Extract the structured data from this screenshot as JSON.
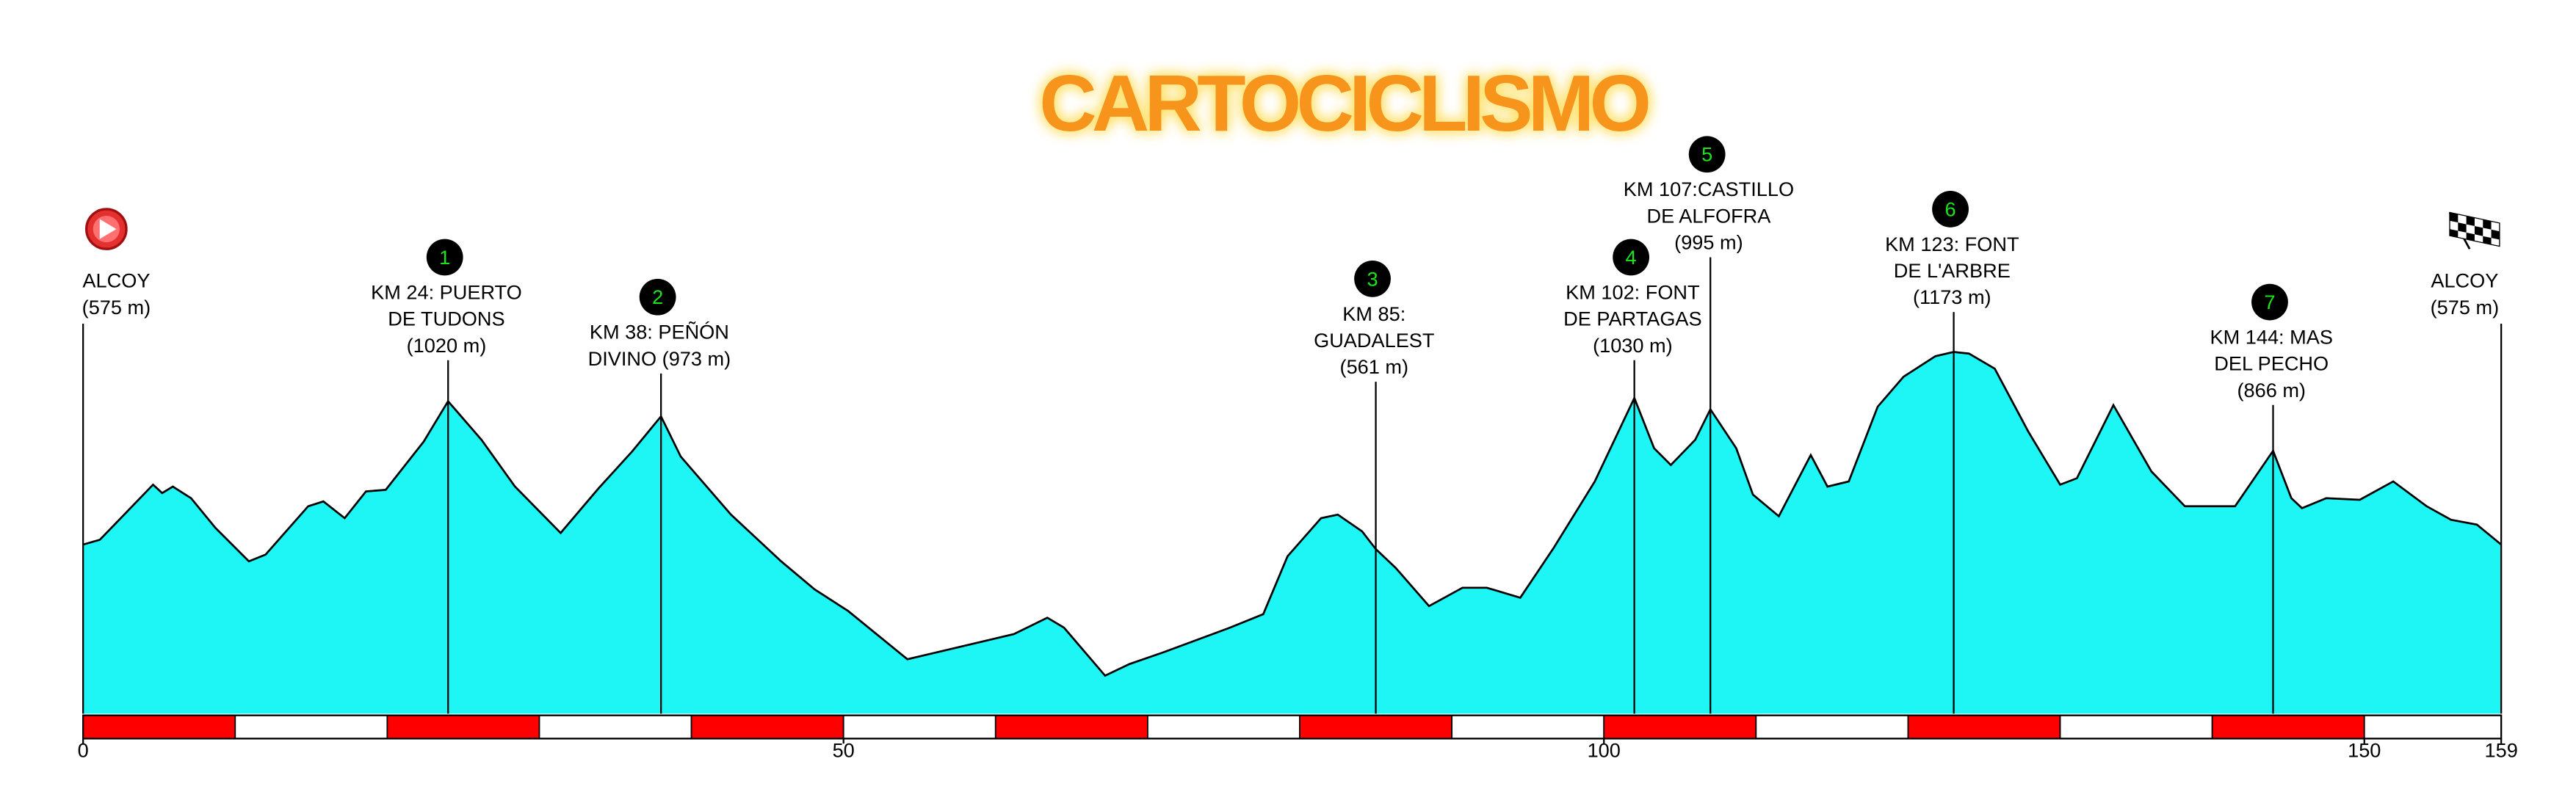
{
  "chart_data": {
    "type": "area",
    "logo": "CARTOCICLISMO",
    "color": "#1ef5f5",
    "line_color": "#000000",
    "x": [
      0,
      1.1,
      2.7,
      4.6,
      5.2,
      5.9,
      7.1,
      8.7,
      10.9,
      12.0,
      14.8,
      15.8,
      17.2,
      18.6,
      19.9,
      22.4,
      24,
      26.2,
      28.4,
      31.4,
      33.9,
      36.1,
      38,
      39.3,
      42.6,
      45.9,
      48.1,
      50.3,
      54.2,
      61.2,
      63.4,
      64.5,
      67.2,
      68.8,
      71.0,
      75.4,
      77.6,
      79.2,
      81.4,
      82.5,
      84.1,
      85,
      86.3,
      88.5,
      90.7,
      92.3,
      94.5,
      96.7,
      99.4,
      102,
      103.3,
      104.4,
      106.0,
      107,
      108.7,
      109.8,
      111.5,
      113.6,
      114.7,
      116.1,
      118.0,
      119.7,
      121.8,
      123,
      124.0,
      125.7,
      127.9,
      130.0,
      131.1,
      133.5,
      136.0,
      138.2,
      141.5,
      144,
      145.2,
      145.9,
      147.5,
      149.7,
      151.9,
      154.1,
      155.7,
      157.4,
      159
    ],
    "values": [
      575,
      590,
      668,
      761,
      735,
      755,
      719,
      627,
      523,
      544,
      694,
      709,
      657,
      740,
      745,
      895,
      1020,
      900,
      755,
      611,
      750,
      864,
      973,
      848,
      668,
      523,
      436,
      369,
      219,
      297,
      348,
      317,
      168,
      204,
      240,
      317,
      359,
      539,
      657,
      668,
      616,
      561,
      503,
      384,
      441,
      441,
      410,
      565,
      771,
      1030,
      874,
      822,
      900,
      995,
      874,
      730,
      663,
      853,
      755,
      771,
      1003,
      1096,
      1160,
      1173,
      1168,
      1121,
      926,
      761,
      781,
      1008,
      802,
      694,
      694,
      866,
      719,
      688,
      719,
      714,
      771,
      694,
      652,
      637,
      575
    ],
    "xlim": [
      0,
      159
    ],
    "ylim": [
      50,
      1400
    ],
    "xticks": [
      0,
      50,
      100,
      150,
      159
    ],
    "stripe_km": 10,
    "stripe_colors": [
      "#ff0000",
      "#ffffff"
    ],
    "start": {
      "x": 0,
      "lines": [
        "ALCOY",
        "(575 m)"
      ]
    },
    "finish": {
      "x": 159,
      "lines": [
        "ALCOY",
        "(575 m)"
      ]
    },
    "climbs": [
      {
        "marker": "1",
        "x": 24,
        "lines": [
          "KM 24: PUERTO",
          "DE TUDONS",
          "(1020 m)"
        ]
      },
      {
        "marker": "2",
        "x": 38,
        "lines": [
          "KM 38: PEÑÓN",
          "DIVINO (973 m)"
        ]
      },
      {
        "marker": "3",
        "x": 85,
        "lines": [
          "KM 85:",
          "GUADALEST",
          "(561 m)"
        ]
      },
      {
        "marker": "4",
        "x": 102,
        "lines": [
          "KM 102: FONT",
          "DE PARTAGAS",
          "(1030 m)"
        ]
      },
      {
        "marker": "5",
        "x": 107,
        "lines": [
          "KM 107:CASTILLO",
          "DE ALFOFRA",
          "(995 m)"
        ]
      },
      {
        "marker": "6",
        "x": 123,
        "lines": [
          "KM 123: FONT",
          "DE L'ARBRE",
          "(1173 m)"
        ]
      },
      {
        "marker": "7",
        "x": 144,
        "lines": [
          "KM 144: MAS",
          "DEL PECHO",
          "(866 m)"
        ]
      }
    ]
  }
}
